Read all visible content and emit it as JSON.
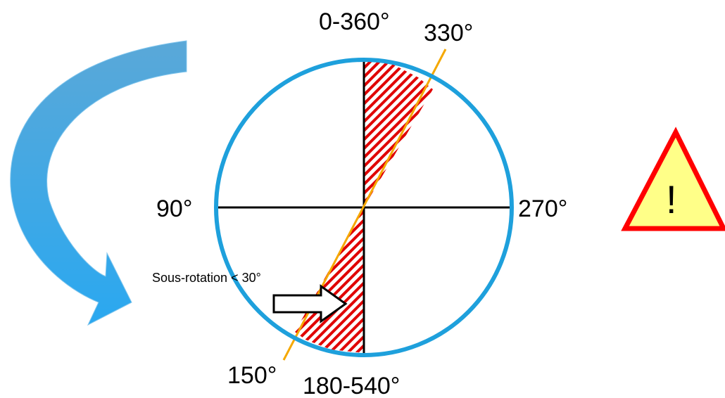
{
  "labels": {
    "top": "0-360°",
    "top_right": "330°",
    "left": "90°",
    "right": "270°",
    "bottom_left": "150°",
    "bottom": "180-540°",
    "annotation": "Sous-rotation < 30°"
  },
  "warning": {
    "glyph": "!"
  },
  "colors": {
    "circle": "#1ea0dc",
    "line_330_150": "#f5a800",
    "hatch": "#e00000",
    "warning_fill": "#ffff88",
    "warning_stroke": "#ff0000",
    "arrow_blue": "#3aaee8"
  }
}
